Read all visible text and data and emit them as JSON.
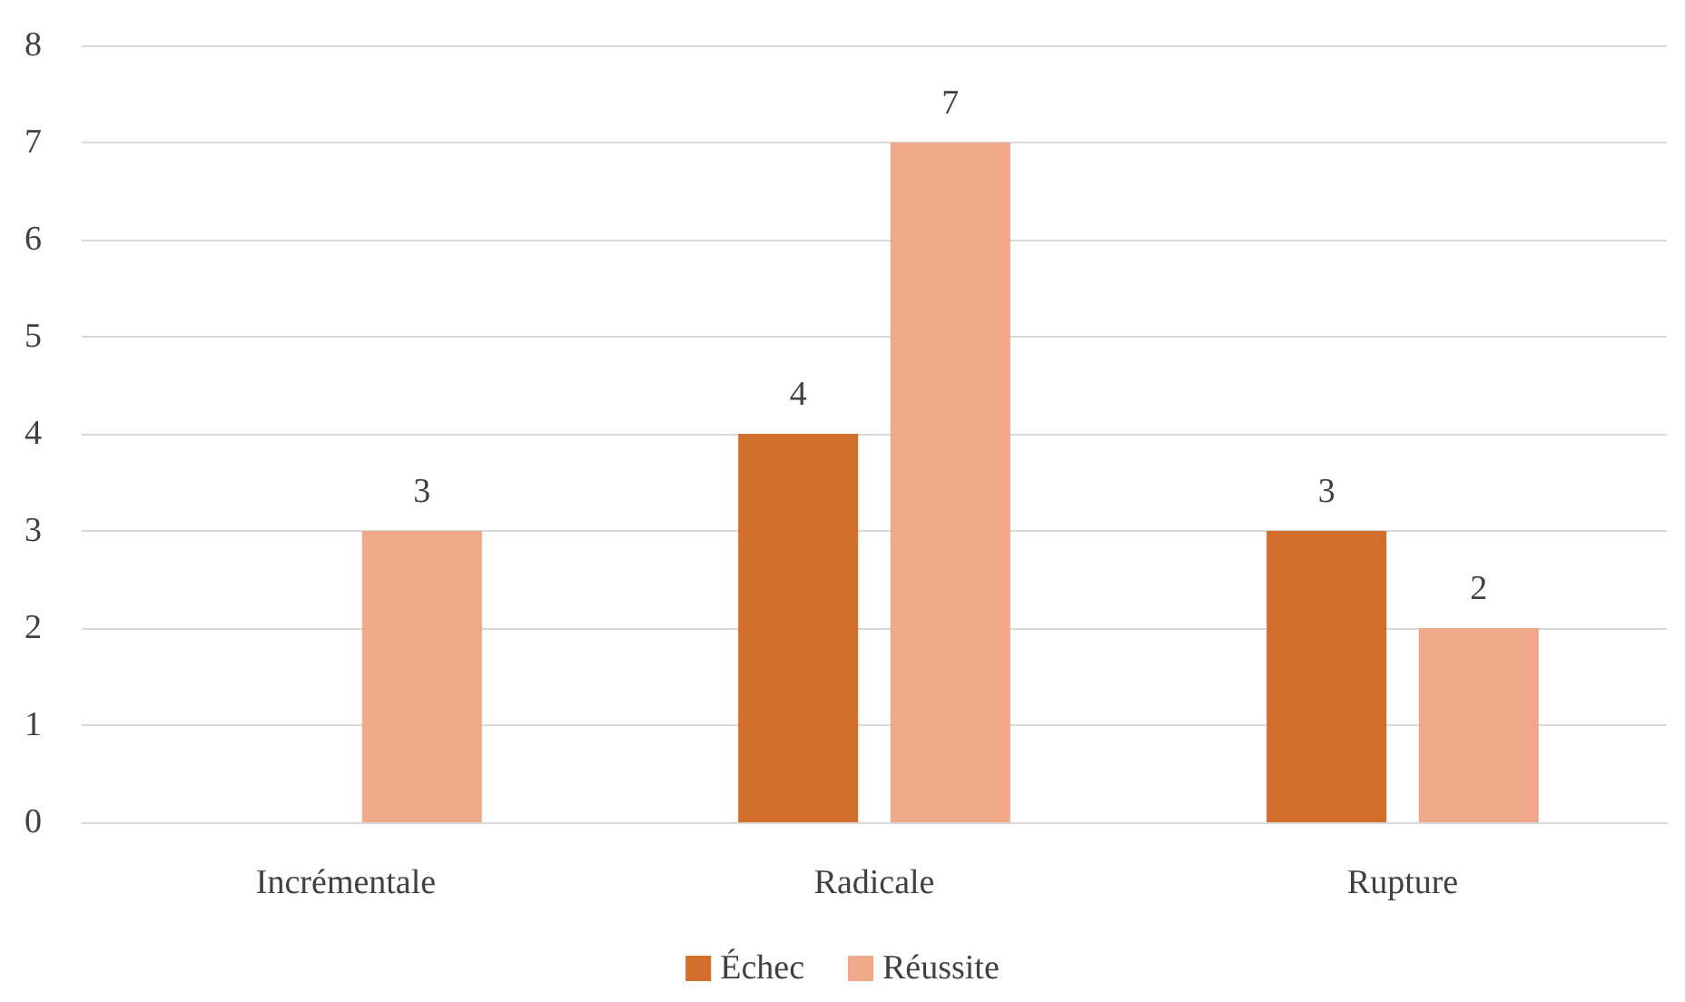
{
  "chart_data": {
    "type": "bar",
    "categories": [
      "Incrémentale",
      "Radicale",
      "Rupture"
    ],
    "series": [
      {
        "name": "Échec",
        "color": "#d26d2a",
        "values": [
          null,
          4,
          3
        ]
      },
      {
        "name": "Réussite",
        "color": "#f0a88a",
        "values": [
          3,
          7,
          2
        ]
      }
    ],
    "ylim": [
      0,
      8
    ],
    "yticks": [
      0,
      1,
      2,
      3,
      4,
      5,
      6,
      7,
      8
    ],
    "grid": "y",
    "legend": "bottom",
    "data_labels": true
  }
}
